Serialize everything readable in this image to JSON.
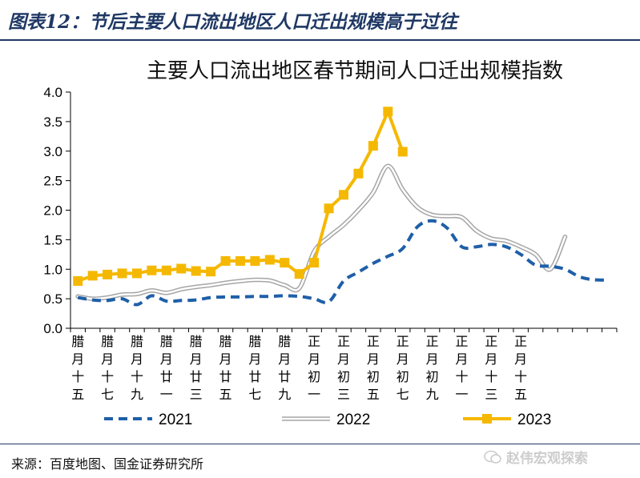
{
  "figure": {
    "title": "图表12：节后主要人口流出地区人口迁出规模高于过往",
    "source": "来源：百度地图、国金证券研究所",
    "watermark": "赵伟宏观探索"
  },
  "chart_data": {
    "type": "line",
    "title": "主要人口流出地区春节期间人口迁出规模指数",
    "xlabel": "",
    "ylabel": "",
    "ylim": [
      0,
      4.0
    ],
    "yticks": [
      "0.0",
      "0.5",
      "1.0",
      "1.5",
      "2.0",
      "2.5",
      "3.0",
      "3.5",
      "4.0"
    ],
    "x_tick_labels": [
      "腊月十五",
      "腊月十七",
      "腊月十九",
      "腊月廿一",
      "腊月廿三",
      "腊月廿五",
      "腊月廿七",
      "腊月廿九",
      "正月初一",
      "正月初三",
      "正月初五",
      "正月初七",
      "正月初九",
      "正月十一",
      "正月十三",
      "正月十五"
    ],
    "grid": false,
    "legend_position": "bottom",
    "series": [
      {
        "name": "2021",
        "style": "dashed",
        "color": "#1f5fa8",
        "values": [
          0.52,
          0.48,
          0.47,
          0.5,
          0.4,
          0.55,
          0.46,
          0.47,
          0.48,
          0.52,
          0.53,
          0.53,
          0.54,
          0.54,
          0.55,
          0.54,
          0.5,
          0.45,
          0.8,
          0.95,
          1.1,
          1.22,
          1.35,
          1.72,
          1.82,
          1.7,
          1.38,
          1.38,
          1.42,
          1.38,
          1.25,
          1.07,
          1.05,
          1.0,
          0.87,
          0.82,
          0.82
        ]
      },
      {
        "name": "2022",
        "style": "double-line",
        "color": "#a6a6a6",
        "values": [
          0.54,
          0.5,
          0.52,
          0.57,
          0.58,
          0.64,
          0.6,
          0.66,
          0.7,
          0.73,
          0.77,
          0.8,
          0.82,
          0.81,
          0.73,
          0.68,
          1.3,
          1.55,
          1.75,
          2.0,
          2.3,
          2.75,
          2.35,
          2.05,
          1.92,
          1.9,
          1.88,
          1.65,
          1.52,
          1.48,
          1.38,
          1.25,
          1.0,
          1.55
        ]
      },
      {
        "name": "2023",
        "style": "solid-square-markers",
        "color": "#f5b800",
        "values": [
          0.8,
          0.89,
          0.91,
          0.93,
          0.93,
          0.98,
          0.98,
          1.01,
          0.97,
          0.96,
          1.14,
          1.14,
          1.14,
          1.16,
          1.11,
          0.92,
          1.11,
          2.03,
          2.26,
          2.62,
          3.09,
          3.67,
          2.99
        ]
      }
    ]
  }
}
